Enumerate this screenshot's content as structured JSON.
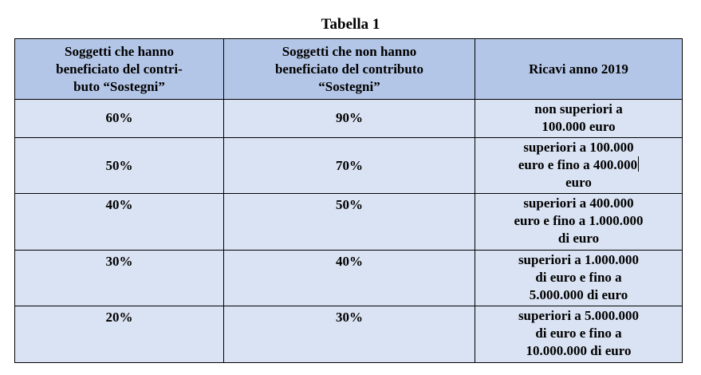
{
  "caption": "Tabella 1",
  "headers": {
    "col1": [
      "Soggetti che hanno",
      "beneficiato del contri-",
      "buto “Sostegni”"
    ],
    "col2": [
      "Soggetti che non hanno",
      "beneficiato del contributo",
      "“Sostegni”"
    ],
    "col3": [
      "Ricavi anno 2019"
    ]
  },
  "rows": [
    {
      "beneficiaries": "60%",
      "non_beneficiaries": "90%",
      "revenue": [
        "non superiori a",
        "100.000 euro"
      ]
    },
    {
      "beneficiaries": "50%",
      "non_beneficiaries": "70%",
      "revenue": [
        "superiori a 100.000",
        "euro e fino a 400.000",
        "euro"
      ]
    },
    {
      "beneficiaries": "40%",
      "non_beneficiaries": "50%",
      "revenue": [
        "superiori a 400.000",
        "euro e fino a 1.000.000",
        "di euro"
      ]
    },
    {
      "beneficiaries": "30%",
      "non_beneficiaries": "40%",
      "revenue": [
        "superiori a 1.000.000",
        "di euro e fino a",
        "5.000.000 di euro"
      ]
    },
    {
      "beneficiaries": "20%",
      "non_beneficiaries": "30%",
      "revenue": [
        "superiori a 5.000.000",
        "di euro e fino a",
        "10.000.000 di euro"
      ]
    }
  ]
}
